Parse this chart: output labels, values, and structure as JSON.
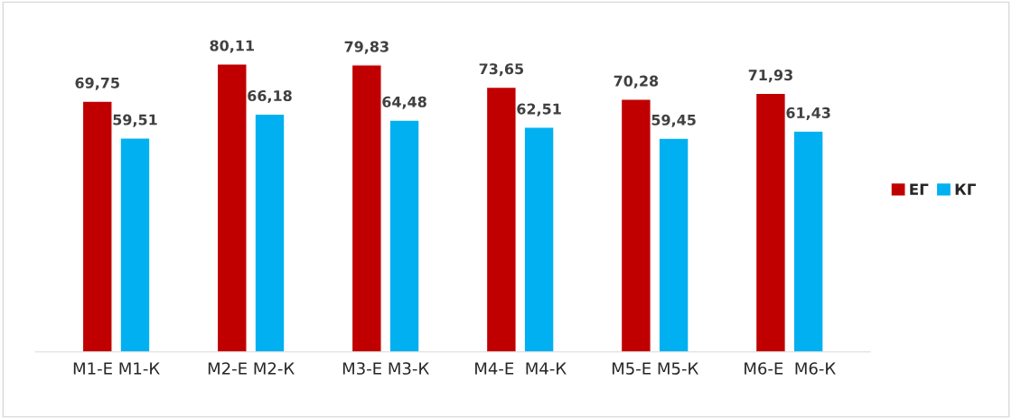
{
  "chart_data": {
    "type": "bar",
    "categories": [
      "М1-Е М1-К",
      "М2-Е М2-К",
      "М3-Е М3-К",
      "М4-Е  М4-К",
      "М5-Е М5-К",
      "М6-Е  М6-К"
    ],
    "series": [
      {
        "name": "ЕГ",
        "color": "#c00000",
        "values": [
          69.75,
          80.11,
          79.83,
          73.65,
          70.28,
          71.93
        ],
        "value_labels": [
          "69,75",
          "80,11",
          "79,83",
          "73,65",
          "70,28",
          "71,93"
        ]
      },
      {
        "name": "КГ",
        "color": "#00b0f0",
        "values": [
          59.51,
          66.18,
          64.48,
          62.51,
          59.45,
          61.43
        ],
        "value_labels": [
          "59,51",
          "66,18",
          "64,48",
          "62,51",
          "59,45",
          "61,43"
        ]
      }
    ],
    "legend": "right",
    "tick_labels": "x"
  }
}
